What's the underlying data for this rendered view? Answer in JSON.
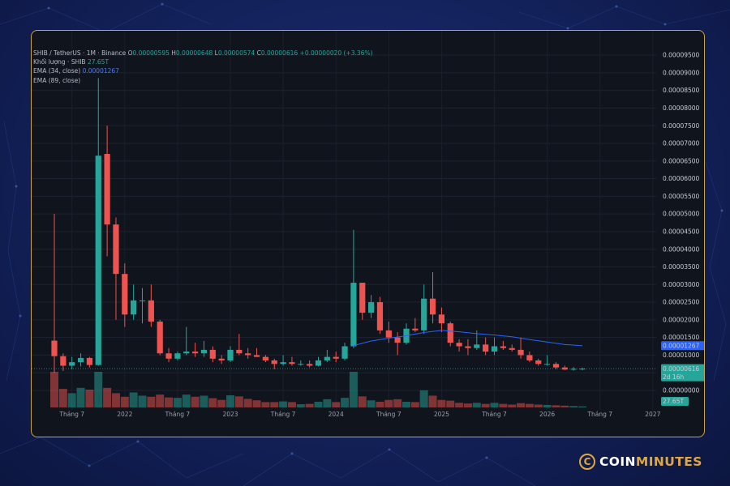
{
  "colors": {
    "up": "#26a69a",
    "down": "#ef5350",
    "ema34": "#2962ff",
    "frame": "#c9a24a",
    "brand_gold": "#e0a73c"
  },
  "legend": {
    "symbol": "SHIB / TetherUS · 1M · Binance",
    "o_label": "O",
    "o_value": "0.00000595",
    "h_label": "H",
    "h_value": "0.00000648",
    "l_label": "L",
    "l_value": "0.00000574",
    "c_label": "C",
    "c_value": "0.00000616",
    "change": "+0.00000020 (+3.36%)",
    "volume_label": "Khối lượng · SHIB",
    "volume_value": "27.65T",
    "ema34_label": "EMA (34, close)",
    "ema34_value": "0.00001267",
    "ema89_label": "EMA (89, close)"
  },
  "price_badges": {
    "ema": "0.00001267",
    "last": "0.00000616",
    "countdown": "2d 16h",
    "volume": "27.65T"
  },
  "logo": {
    "icon_letter": "C",
    "coin": "COIN",
    "minutes": "MINUTES"
  },
  "chart_data": {
    "type": "candlestick",
    "symbol": "SHIB / TetherUS",
    "interval": "1M",
    "exchange": "Binance",
    "y_ticks": [
      "0.00000000",
      "0.00000500",
      "0.00001000",
      "0.00001500",
      "0.00002000",
      "0.00002500",
      "0.00003000",
      "0.00003500",
      "0.00004000",
      "0.00004500",
      "0.00005000",
      "0.00005500",
      "0.00006000",
      "0.00006500",
      "0.00007000",
      "0.00007500",
      "0.00008000",
      "0.00008500",
      "0.00009000",
      "0.00009500"
    ],
    "x_ticks": [
      "Tháng 7",
      "2022",
      "Tháng 7",
      "2023",
      "Tháng 7",
      "2024",
      "Tháng 7",
      "2025",
      "Tháng 7",
      "2026",
      "Tháng 7",
      "2027"
    ],
    "ylim": [
      0,
      9.5e-05
    ],
    "grid": true,
    "candles": [
      {
        "x": "2021-05",
        "o": 1.41e-05,
        "h": 5e-05,
        "l": 5e-06,
        "c": 9.7e-06
      },
      {
        "x": "2021-06",
        "o": 9.7e-06,
        "h": 1.05e-05,
        "l": 5.5e-06,
        "c": 7e-06
      },
      {
        "x": "2021-07",
        "o": 7e-06,
        "h": 9.5e-06,
        "l": 6e-06,
        "c": 8e-06
      },
      {
        "x": "2021-08",
        "o": 8e-06,
        "h": 1.05e-05,
        "l": 6.8e-06,
        "c": 9.2e-06
      },
      {
        "x": "2021-09",
        "o": 9.2e-06,
        "h": 9.5e-06,
        "l": 6.5e-06,
        "c": 7.2e-06
      },
      {
        "x": "2021-10",
        "o": 7.2e-06,
        "h": 8.85e-05,
        "l": 7e-06,
        "c": 6.65e-05
      },
      {
        "x": "2021-11",
        "o": 6.7e-05,
        "h": 7.5e-05,
        "l": 3.8e-05,
        "c": 4.7e-05
      },
      {
        "x": "2021-12",
        "o": 4.7e-05,
        "h": 4.9e-05,
        "l": 2e-05,
        "c": 3.3e-05
      },
      {
        "x": "2022-01",
        "o": 3.3e-05,
        "h": 3.6e-05,
        "l": 1.8e-05,
        "c": 2.15e-05
      },
      {
        "x": "2022-02",
        "o": 2.15e-05,
        "h": 3e-05,
        "l": 2e-05,
        "c": 2.55e-05
      },
      {
        "x": "2022-03",
        "o": 2.55e-05,
        "h": 2.9e-05,
        "l": 1.9e-05,
        "c": 2.55e-05
      },
      {
        "x": "2022-04",
        "o": 2.55e-05,
        "h": 3e-05,
        "l": 1.8e-05,
        "c": 1.95e-05
      },
      {
        "x": "2022-05",
        "o": 1.95e-05,
        "h": 2e-05,
        "l": 1e-05,
        "c": 1.05e-05
      },
      {
        "x": "2022-06",
        "o": 1.05e-05,
        "h": 1.2e-05,
        "l": 8e-06,
        "c": 9e-06
      },
      {
        "x": "2022-07",
        "o": 9e-06,
        "h": 1.1e-05,
        "l": 8.5e-06,
        "c": 1.05e-05
      },
      {
        "x": "2022-08",
        "o": 1.05e-05,
        "h": 1.8e-05,
        "l": 1e-05,
        "c": 1.1e-05
      },
      {
        "x": "2022-09",
        "o": 1.1e-05,
        "h": 1.35e-05,
        "l": 9.5e-06,
        "c": 1.05e-05
      },
      {
        "x": "2022-10",
        "o": 1.05e-05,
        "h": 1.4e-05,
        "l": 9.5e-06,
        "c": 1.15e-05
      },
      {
        "x": "2022-11",
        "o": 1.15e-05,
        "h": 1.25e-05,
        "l": 8e-06,
        "c": 9e-06
      },
      {
        "x": "2022-12",
        "o": 9e-06,
        "h": 1e-05,
        "l": 7.5e-06,
        "c": 8.5e-06
      },
      {
        "x": "2023-01",
        "o": 8.5e-06,
        "h": 1.25e-05,
        "l": 8e-06,
        "c": 1.15e-05
      },
      {
        "x": "2023-02",
        "o": 1.15e-05,
        "h": 1.6e-05,
        "l": 1e-05,
        "c": 1.05e-05
      },
      {
        "x": "2023-03",
        "o": 1.05e-05,
        "h": 1.2e-05,
        "l": 9e-06,
        "c": 1e-05
      },
      {
        "x": "2023-04",
        "o": 1e-05,
        "h": 1.2e-05,
        "l": 9.5e-06,
        "c": 9.5e-06
      },
      {
        "x": "2023-05",
        "o": 9.5e-06,
        "h": 1e-05,
        "l": 8e-06,
        "c": 8.5e-06
      },
      {
        "x": "2023-06",
        "o": 8.5e-06,
        "h": 9e-06,
        "l": 6e-06,
        "c": 7.5e-06
      },
      {
        "x": "2023-07",
        "o": 7.5e-06,
        "h": 1e-05,
        "l": 7e-06,
        "c": 8e-06
      },
      {
        "x": "2023-08",
        "o": 8e-06,
        "h": 9.5e-06,
        "l": 7e-06,
        "c": 7.5e-06
      },
      {
        "x": "2023-09",
        "o": 7.5e-06,
        "h": 8.5e-06,
        "l": 7e-06,
        "c": 7.5e-06
      },
      {
        "x": "2023-10",
        "o": 7.5e-06,
        "h": 8.5e-06,
        "l": 6.5e-06,
        "c": 7e-06
      },
      {
        "x": "2023-11",
        "o": 7e-06,
        "h": 9.5e-06,
        "l": 6.8e-06,
        "c": 8.5e-06
      },
      {
        "x": "2023-12",
        "o": 8.5e-06,
        "h": 1.15e-05,
        "l": 8e-06,
        "c": 9.5e-06
      },
      {
        "x": "2024-01",
        "o": 9.5e-06,
        "h": 1.1e-05,
        "l": 8e-06,
        "c": 9e-06
      },
      {
        "x": "2024-02",
        "o": 9e-06,
        "h": 1.35e-05,
        "l": 8.5e-06,
        "c": 1.25e-05
      },
      {
        "x": "2024-03",
        "o": 1.25e-05,
        "h": 4.55e-05,
        "l": 1.2e-05,
        "c": 3.05e-05
      },
      {
        "x": "2024-04",
        "o": 3.05e-05,
        "h": 3.05e-05,
        "l": 2e-05,
        "c": 2.2e-05
      },
      {
        "x": "2024-05",
        "o": 2.2e-05,
        "h": 2.7e-05,
        "l": 2.05e-05,
        "c": 2.5e-05
      },
      {
        "x": "2024-06",
        "o": 2.5e-05,
        "h": 2.65e-05,
        "l": 1.6e-05,
        "c": 1.7e-05
      },
      {
        "x": "2024-07",
        "o": 1.7e-05,
        "h": 1.95e-05,
        "l": 1.35e-05,
        "c": 1.5e-05
      },
      {
        "x": "2024-08",
        "o": 1.5e-05,
        "h": 1.65e-05,
        "l": 1e-05,
        "c": 1.35e-05
      },
      {
        "x": "2024-09",
        "o": 1.35e-05,
        "h": 1.9e-05,
        "l": 1.3e-05,
        "c": 1.75e-05
      },
      {
        "x": "2024-10",
        "o": 1.75e-05,
        "h": 2.05e-05,
        "l": 1.65e-05,
        "c": 1.7e-05
      },
      {
        "x": "2024-11",
        "o": 1.7e-05,
        "h": 3e-05,
        "l": 1.6e-05,
        "c": 2.6e-05
      },
      {
        "x": "2024-12",
        "o": 2.6e-05,
        "h": 3.35e-05,
        "l": 1.9e-05,
        "c": 2.15e-05
      },
      {
        "x": "2025-01",
        "o": 2.15e-05,
        "h": 2.35e-05,
        "l": 1.65e-05,
        "c": 1.9e-05
      },
      {
        "x": "2025-02",
        "o": 1.9e-05,
        "h": 1.95e-05,
        "l": 1.25e-05,
        "c": 1.35e-05
      },
      {
        "x": "2025-03",
        "o": 1.35e-05,
        "h": 1.45e-05,
        "l": 1.1e-05,
        "c": 1.25e-05
      },
      {
        "x": "2025-04",
        "o": 1.25e-05,
        "h": 1.45e-05,
        "l": 1e-05,
        "c": 1.2e-05
      },
      {
        "x": "2025-05",
        "o": 1.2e-05,
        "h": 1.7e-05,
        "l": 1.15e-05,
        "c": 1.3e-05
      },
      {
        "x": "2025-06",
        "o": 1.3e-05,
        "h": 1.5e-05,
        "l": 1e-05,
        "c": 1.1e-05
      },
      {
        "x": "2025-07",
        "o": 1.1e-05,
        "h": 1.5e-05,
        "l": 1e-05,
        "c": 1.25e-05
      },
      {
        "x": "2025-08",
        "o": 1.25e-05,
        "h": 1.4e-05,
        "l": 1.15e-05,
        "c": 1.2e-05
      },
      {
        "x": "2025-09",
        "o": 1.2e-05,
        "h": 1.3e-05,
        "l": 1.1e-05,
        "c": 1.15e-05
      },
      {
        "x": "2025-10",
        "o": 1.15e-05,
        "h": 1.5e-05,
        "l": 9e-06,
        "c": 1e-05
      },
      {
        "x": "2025-11",
        "o": 1e-05,
        "h": 1.1e-05,
        "l": 8e-06,
        "c": 8.5e-06
      },
      {
        "x": "2025-12",
        "o": 8.5e-06,
        "h": 9e-06,
        "l": 7e-06,
        "c": 7.5e-06
      },
      {
        "x": "2026-01",
        "o": 7.5e-06,
        "h": 1e-05,
        "l": 7e-06,
        "c": 7.5e-06
      },
      {
        "x": "2026-02",
        "o": 7.5e-06,
        "h": 8e-06,
        "l": 6e-06,
        "c": 6.5e-06
      },
      {
        "x": "2026-03",
        "o": 6.5e-06,
        "h": 7e-06,
        "l": 5.8e-06,
        "c": 5.9e-06
      },
      {
        "x": "2026-04",
        "o": 5.9e-06,
        "h": 6.6e-06,
        "l": 5.6e-06,
        "c": 6.1e-06
      },
      {
        "x": "2026-05",
        "o": 5.95e-06,
        "h": 6.48e-06,
        "l": 5.74e-06,
        "c": 6.16e-06
      }
    ],
    "volume": [
      {
        "x": "2021-05",
        "v": 1.0
      },
      {
        "x": "2021-06",
        "v": 0.52
      },
      {
        "x": "2021-07",
        "v": 0.4
      },
      {
        "x": "2021-08",
        "v": 0.55
      },
      {
        "x": "2021-09",
        "v": 0.5
      },
      {
        "x": "2021-10",
        "v": 1.0
      },
      {
        "x": "2021-11",
        "v": 0.55
      },
      {
        "x": "2021-12",
        "v": 0.4
      },
      {
        "x": "2022-01",
        "v": 0.3
      },
      {
        "x": "2022-02",
        "v": 0.42
      },
      {
        "x": "2022-03",
        "v": 0.33
      },
      {
        "x": "2022-04",
        "v": 0.3
      },
      {
        "x": "2022-05",
        "v": 0.36
      },
      {
        "x": "2022-06",
        "v": 0.28
      },
      {
        "x": "2022-07",
        "v": 0.27
      },
      {
        "x": "2022-08",
        "v": 0.36
      },
      {
        "x": "2022-09",
        "v": 0.3
      },
      {
        "x": "2022-10",
        "v": 0.33
      },
      {
        "x": "2022-11",
        "v": 0.26
      },
      {
        "x": "2022-12",
        "v": 0.21
      },
      {
        "x": "2023-01",
        "v": 0.34
      },
      {
        "x": "2023-02",
        "v": 0.31
      },
      {
        "x": "2023-03",
        "v": 0.24
      },
      {
        "x": "2023-04",
        "v": 0.2
      },
      {
        "x": "2023-05",
        "v": 0.15
      },
      {
        "x": "2023-06",
        "v": 0.15
      },
      {
        "x": "2023-07",
        "v": 0.17
      },
      {
        "x": "2023-08",
        "v": 0.15
      },
      {
        "x": "2023-09",
        "v": 0.09
      },
      {
        "x": "2023-10",
        "v": 0.1
      },
      {
        "x": "2023-11",
        "v": 0.16
      },
      {
        "x": "2023-12",
        "v": 0.23
      },
      {
        "x": "2024-01",
        "v": 0.15
      },
      {
        "x": "2024-02",
        "v": 0.27
      },
      {
        "x": "2024-03",
        "v": 1.0
      },
      {
        "x": "2024-04",
        "v": 0.31
      },
      {
        "x": "2024-05",
        "v": 0.2
      },
      {
        "x": "2024-06",
        "v": 0.16
      },
      {
        "x": "2024-07",
        "v": 0.21
      },
      {
        "x": "2024-08",
        "v": 0.23
      },
      {
        "x": "2024-09",
        "v": 0.16
      },
      {
        "x": "2024-10",
        "v": 0.15
      },
      {
        "x": "2024-11",
        "v": 0.48
      },
      {
        "x": "2024-12",
        "v": 0.33
      },
      {
        "x": "2025-01",
        "v": 0.21
      },
      {
        "x": "2025-02",
        "v": 0.19
      },
      {
        "x": "2025-03",
        "v": 0.13
      },
      {
        "x": "2025-04",
        "v": 0.11
      },
      {
        "x": "2025-05",
        "v": 0.13
      },
      {
        "x": "2025-06",
        "v": 0.1
      },
      {
        "x": "2025-07",
        "v": 0.13
      },
      {
        "x": "2025-08",
        "v": 0.1
      },
      {
        "x": "2025-09",
        "v": 0.08
      },
      {
        "x": "2025-10",
        "v": 0.12
      },
      {
        "x": "2025-11",
        "v": 0.1
      },
      {
        "x": "2025-12",
        "v": 0.08
      },
      {
        "x": "2026-01",
        "v": 0.07
      },
      {
        "x": "2026-02",
        "v": 0.06
      },
      {
        "x": "2026-03",
        "v": 0.05
      },
      {
        "x": "2026-04",
        "v": 0.04
      },
      {
        "x": "2026-05",
        "v": 0.03
      }
    ],
    "ema34": [
      {
        "x": "2024-03",
        "y": 1.27e-05
      },
      {
        "x": "2024-05",
        "y": 1.4e-05
      },
      {
        "x": "2024-07",
        "y": 1.48e-05
      },
      {
        "x": "2024-09",
        "y": 1.55e-05
      },
      {
        "x": "2024-11",
        "y": 1.64e-05
      },
      {
        "x": "2025-01",
        "y": 1.7e-05
      },
      {
        "x": "2025-03",
        "y": 1.66e-05
      },
      {
        "x": "2025-05",
        "y": 1.61e-05
      },
      {
        "x": "2025-07",
        "y": 1.57e-05
      },
      {
        "x": "2025-09",
        "y": 1.52e-05
      },
      {
        "x": "2025-11",
        "y": 1.44e-05
      },
      {
        "x": "2026-01",
        "y": 1.37e-05
      },
      {
        "x": "2026-03",
        "y": 1.3e-05
      },
      {
        "x": "2026-05",
        "y": 1.267e-05
      }
    ]
  }
}
